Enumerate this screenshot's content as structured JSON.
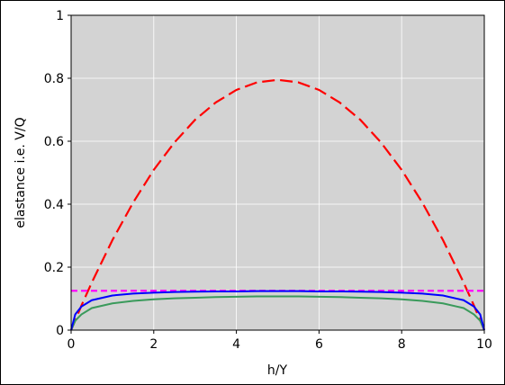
{
  "chart_data": {
    "type": "line",
    "xlabel": "h/Y",
    "ylabel": "elastance i.e. V/Q",
    "x": [
      0,
      0.1,
      0.25,
      0.5,
      1,
      1.5,
      2,
      2.5,
      3,
      3.5,
      4,
      4.5,
      5,
      5.5,
      6,
      6.5,
      7,
      7.5,
      8,
      8.5,
      9,
      9.5,
      9.75,
      9.9,
      10
    ],
    "series": [
      {
        "color": "#ff0000",
        "dashed": true,
        "values": [
          0,
          0.031,
          0.078,
          0.151,
          0.286,
          0.405,
          0.509,
          0.596,
          0.668,
          0.723,
          0.763,
          0.787,
          0.795,
          0.787,
          0.763,
          0.723,
          0.668,
          0.596,
          0.509,
          0.405,
          0.286,
          0.151,
          0.078,
          0.031,
          0
        ]
      },
      {
        "color": "#ff00ff",
        "dashed": true,
        "values": [
          0.125,
          0.125,
          0.125,
          0.125,
          0.125,
          0.125,
          0.125,
          0.125,
          0.125,
          0.125,
          0.125,
          0.125,
          0.125,
          0.125,
          0.125,
          0.125,
          0.125,
          0.125,
          0.125,
          0.125,
          0.125,
          0.125,
          0.125,
          0.125,
          0.125
        ]
      },
      {
        "color": "#3a9a5b",
        "dashed": false,
        "values": [
          0,
          0.03,
          0.05,
          0.07,
          0.085,
          0.093,
          0.098,
          0.101,
          0.103,
          0.105,
          0.106,
          0.107,
          0.107,
          0.107,
          0.106,
          0.105,
          0.103,
          0.101,
          0.098,
          0.093,
          0.085,
          0.07,
          0.05,
          0.03,
          0
        ]
      },
      {
        "color": "#0000ff",
        "dashed": false,
        "values": [
          0,
          0.05,
          0.075,
          0.095,
          0.11,
          0.116,
          0.119,
          0.121,
          0.122,
          0.123,
          0.123,
          0.124,
          0.124,
          0.124,
          0.123,
          0.123,
          0.122,
          0.121,
          0.119,
          0.116,
          0.11,
          0.095,
          0.075,
          0.05,
          0
        ]
      }
    ],
    "xlim": [
      0,
      10
    ],
    "xticks": [
      0,
      2,
      4,
      6,
      8,
      10
    ],
    "ylim": [
      0,
      1
    ],
    "yticks": [
      0,
      0.2,
      0.4,
      0.6,
      0.8,
      1
    ],
    "grid": true,
    "background": "#d3d3d3"
  }
}
